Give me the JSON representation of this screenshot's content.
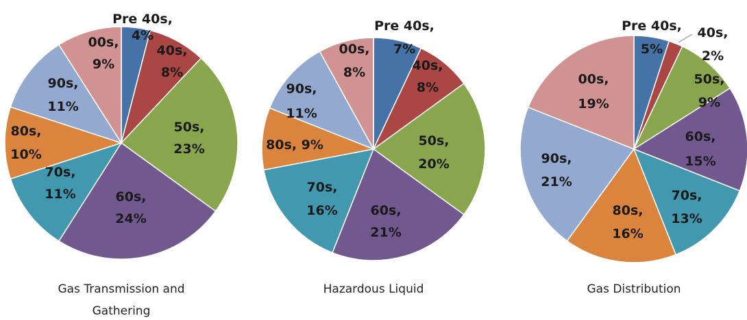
{
  "chart_data": [
    {
      "type": "pie",
      "title_lines": [
        "Gas Transmission and",
        "Gathering"
      ],
      "slices": [
        {
          "label": "Pre 40s",
          "value": 4,
          "color": "#4572A7"
        },
        {
          "label": "40s",
          "value": 8,
          "color": "#AA4643"
        },
        {
          "label": "50s",
          "value": 23,
          "color": "#89A54E"
        },
        {
          "label": "60s",
          "value": 24,
          "color": "#71588F"
        },
        {
          "label": "70s",
          "value": 11,
          "color": "#4198AF"
        },
        {
          "label": "80s",
          "value": 10,
          "color": "#DB843D"
        },
        {
          "label": "90s",
          "value": 11,
          "color": "#93A9CF"
        },
        {
          "label": "00s",
          "value": 9,
          "color": "#D19392"
        }
      ]
    },
    {
      "type": "pie",
      "title_lines": [
        "Hazardous Liquid"
      ],
      "slices": [
        {
          "label": "Pre 40s",
          "value": 7,
          "color": "#4572A7"
        },
        {
          "label": "40s",
          "value": 8,
          "color": "#AA4643"
        },
        {
          "label": "50s",
          "value": 20,
          "color": "#89A54E"
        },
        {
          "label": "60s",
          "value": 21,
          "color": "#71588F"
        },
        {
          "label": "70s",
          "value": 16,
          "color": "#4198AF"
        },
        {
          "label": "80s",
          "value": 9,
          "color": "#DB843D"
        },
        {
          "label": "90s",
          "value": 11,
          "color": "#93A9CF"
        },
        {
          "label": "00s",
          "value": 8,
          "color": "#D19392"
        }
      ]
    },
    {
      "type": "pie",
      "title_lines": [
        "Gas Distribution"
      ],
      "slices": [
        {
          "label": "Pre 40s",
          "value": 5,
          "color": "#4572A7"
        },
        {
          "label": "40s",
          "value": 2,
          "color": "#AA4643"
        },
        {
          "label": "50s",
          "value": 9,
          "color": "#89A54E"
        },
        {
          "label": "60s",
          "value": 15,
          "color": "#71588F"
        },
        {
          "label": "70s",
          "value": 13,
          "color": "#4198AF"
        },
        {
          "label": "80s",
          "value": 16,
          "color": "#DB843D"
        },
        {
          "label": "90s",
          "value": 21,
          "color": "#93A9CF"
        },
        {
          "label": "00s",
          "value": 19,
          "color": "#D19392"
        }
      ]
    }
  ]
}
